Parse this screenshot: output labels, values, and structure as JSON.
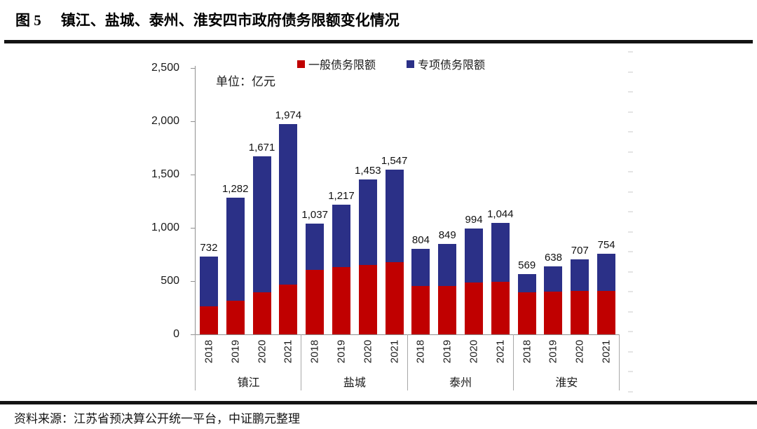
{
  "figure": {
    "label": "图 5",
    "title": "镇江、盐城、泰州、淮安四市政府债务限额变化情况"
  },
  "chart": {
    "unit_label": "单位：亿元",
    "legend": [
      {
        "label": "一般债务限额",
        "color": "#c00000"
      },
      {
        "label": "专项债务限额",
        "color": "#2b3087"
      }
    ],
    "colors": {
      "general_debt": "#c00000",
      "special_debt": "#2b3087",
      "axis": "#909090",
      "text": "#111111"
    }
  },
  "chart_data": {
    "type": "bar",
    "stacked": true,
    "title": "镇江、盐城、泰州、淮安四市政府债务限额变化情况",
    "unit": "亿元",
    "groups": [
      "镇江",
      "盐城",
      "泰州",
      "淮安"
    ],
    "years": [
      "2018",
      "2019",
      "2020",
      "2021"
    ],
    "series": [
      {
        "name": "一般债务限额",
        "color": "#c00000",
        "values": [
          [
            260,
            315,
            395,
            465
          ],
          [
            605,
            630,
            650,
            675
          ],
          [
            455,
            455,
            485,
            495
          ],
          [
            395,
            400,
            410,
            410
          ]
        ]
      },
      {
        "name": "专项债务限额",
        "color": "#2b3087",
        "values": [
          [
            472,
            967,
            1276,
            1509
          ],
          [
            432,
            587,
            803,
            872
          ],
          [
            349,
            394,
            509,
            549
          ],
          [
            174,
            238,
            297,
            344
          ]
        ]
      }
    ],
    "totals": [
      [
        732,
        1282,
        1671,
        1974
      ],
      [
        1037,
        1217,
        1453,
        1547
      ],
      [
        804,
        849,
        994,
        1044
      ],
      [
        569,
        638,
        707,
        754
      ]
    ],
    "total_labels": [
      [
        "732",
        "1,282",
        "1,671",
        "1,974"
      ],
      [
        "1,037",
        "1,217",
        "1,453",
        "1,547"
      ],
      [
        "804",
        "849",
        "994",
        "1,044"
      ],
      [
        "569",
        "638",
        "707",
        "754"
      ]
    ],
    "ylim": [
      0,
      2500
    ],
    "yticks": [
      0,
      500,
      1000,
      1500,
      2000,
      2500
    ],
    "ytick_labels": [
      "0",
      "500",
      "1,000",
      "1,500",
      "2,000",
      "2,500"
    ],
    "grid": false,
    "legend_position": "top"
  },
  "source": {
    "text": "资料来源：江苏省预决算公开统一平台，中证鹏元整理"
  }
}
